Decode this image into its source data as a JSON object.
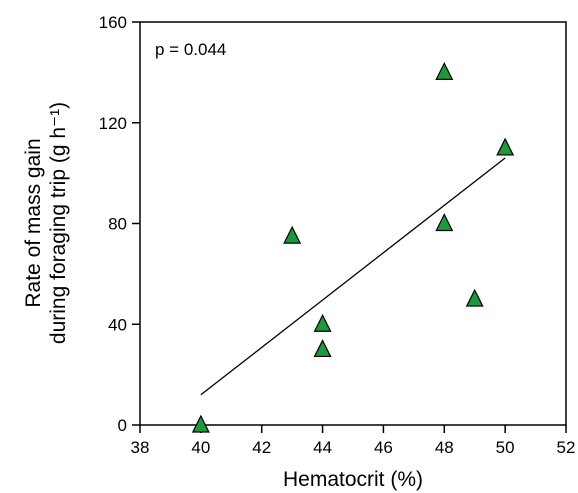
{
  "chart_data": {
    "type": "scatter",
    "title": "",
    "xlabel": "Hematocrit (%)",
    "ylabel_line1": "Rate of mass gain",
    "ylabel_line2": "during foraging trip (g h⁻¹)",
    "annotation": "p = 0.044",
    "xlim": [
      38,
      52
    ],
    "ylim": [
      0,
      160
    ],
    "x_ticks": [
      38,
      40,
      42,
      44,
      46,
      48,
      50,
      52
    ],
    "y_ticks": [
      0,
      40,
      80,
      120,
      160
    ],
    "x_tick_labels": [
      "38",
      "40",
      "42",
      "44",
      "46",
      "48",
      "50",
      "52"
    ],
    "y_tick_labels": [
      "0",
      "40",
      "80",
      "120",
      "160"
    ],
    "points": [
      {
        "x": 40,
        "y": 0
      },
      {
        "x": 43,
        "y": 75
      },
      {
        "x": 44,
        "y": 40
      },
      {
        "x": 44,
        "y": 30
      },
      {
        "x": 48,
        "y": 140
      },
      {
        "x": 48,
        "y": 80
      },
      {
        "x": 49,
        "y": 50
      },
      {
        "x": 50,
        "y": 110
      }
    ],
    "trendline": {
      "x": [
        40,
        50
      ],
      "y": [
        12,
        106
      ]
    },
    "marker": "triangle",
    "marker_color": "#1a9a3a",
    "grid": false
  }
}
